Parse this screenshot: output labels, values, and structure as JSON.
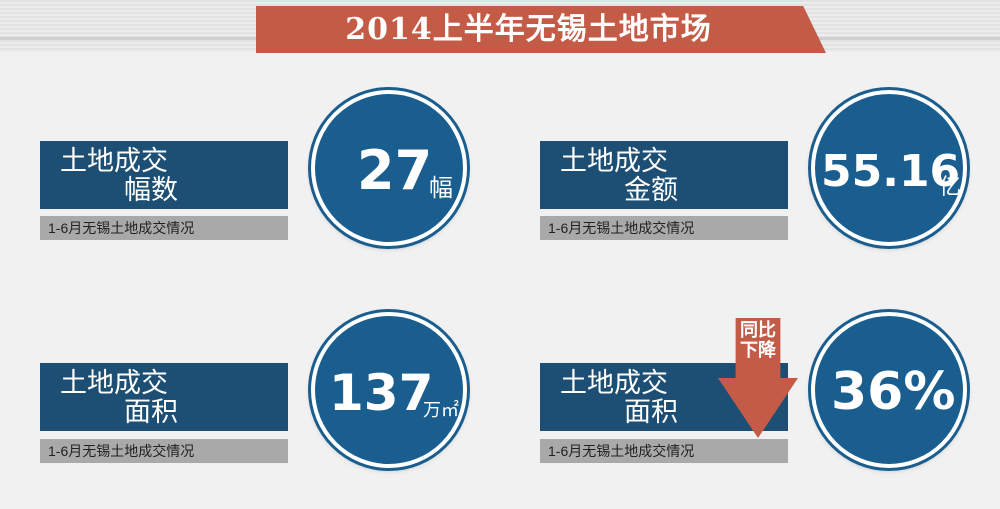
{
  "title": "2014上半年无锡土地市场",
  "cards": [
    {
      "line1": "土地成交",
      "line2": "幅数",
      "subtitle": "1-6月无锡土地成交情况",
      "value": "27",
      "unit": "幅"
    },
    {
      "line1": "土地成交",
      "line2": "金额",
      "subtitle": "1-6月无锡土地成交情况",
      "value": "55.16",
      "unit": "亿"
    },
    {
      "line1": "土地成交",
      "line2": "面积",
      "subtitle": "1-6月无锡土地成交情况",
      "value": "137",
      "unit": "万㎡"
    },
    {
      "line1": "土地成交",
      "line2": "面积",
      "subtitle": "1-6月无锡土地成交情况",
      "value": "36%",
      "unit": ""
    }
  ],
  "arrow_label": "同比下降",
  "colors": {
    "banner": "#c45b46",
    "label": "#1d4e73",
    "circle": "#1a5e8f",
    "sub_bar": "#a9a9a9"
  }
}
